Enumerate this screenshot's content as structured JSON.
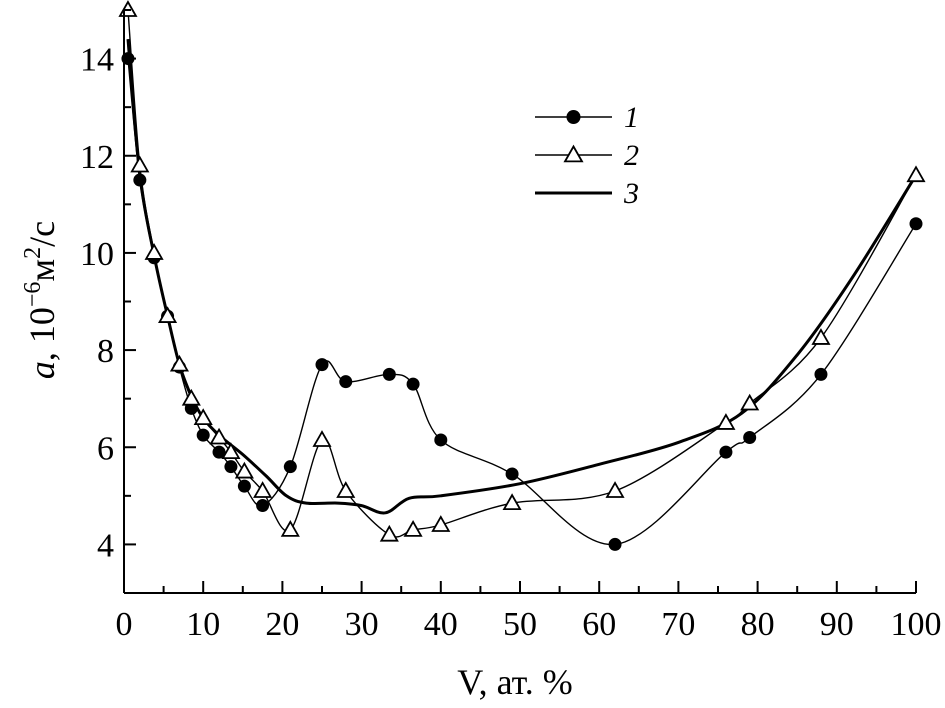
{
  "chart_data": {
    "type": "line",
    "xlabel": "V, ат. %",
    "ylabel_parts": {
      "var": "a",
      "mid": ", 10",
      "exp": "−6",
      "unit": "м",
      "unit_exp": "2",
      "tail": "/с"
    },
    "xlim": [
      0,
      100
    ],
    "ylim": [
      3,
      15
    ],
    "x_ticks": [
      0,
      10,
      20,
      30,
      40,
      50,
      60,
      70,
      80,
      90,
      100
    ],
    "x_tick_labels": [
      "0",
      "10",
      "20",
      "30",
      "40",
      "50",
      "60",
      "70",
      "80",
      "90",
      "100"
    ],
    "y_ticks": [
      4,
      6,
      8,
      10,
      12,
      14
    ],
    "y_tick_labels": [
      "4",
      "6",
      "8",
      "10",
      "12",
      "14"
    ],
    "legend_position": "top-right",
    "series": [
      {
        "name": "1",
        "marker": "filled-circle",
        "points": [
          [
            0.5,
            14.0
          ],
          [
            2,
            11.5
          ],
          [
            3.8,
            9.9
          ],
          [
            5.5,
            8.7
          ],
          [
            7,
            7.65
          ],
          [
            8.5,
            6.8
          ],
          [
            10,
            6.25
          ],
          [
            12,
            5.9
          ],
          [
            13.5,
            5.6
          ],
          [
            15.2,
            5.2
          ],
          [
            17.5,
            4.8
          ],
          [
            21,
            5.6
          ],
          [
            25,
            7.7
          ],
          [
            28,
            7.35
          ],
          [
            33.5,
            7.5
          ],
          [
            36.5,
            7.3
          ],
          [
            40,
            6.15
          ],
          [
            49,
            5.45
          ],
          [
            62,
            4.0
          ],
          [
            76,
            5.9
          ],
          [
            79,
            6.2
          ],
          [
            88,
            7.5
          ],
          [
            100,
            10.6
          ]
        ]
      },
      {
        "name": "2",
        "marker": "open-triangle",
        "points": [
          [
            0.5,
            15.0
          ],
          [
            2,
            11.8
          ],
          [
            3.8,
            10.0
          ],
          [
            5.5,
            8.7
          ],
          [
            7,
            7.7
          ],
          [
            8.5,
            7.0
          ],
          [
            10,
            6.6
          ],
          [
            12,
            6.2
          ],
          [
            13.5,
            5.9
          ],
          [
            15.2,
            5.5
          ],
          [
            17.5,
            5.1
          ],
          [
            21,
            4.3
          ],
          [
            25,
            6.15
          ],
          [
            28,
            5.1
          ],
          [
            33.5,
            4.2
          ],
          [
            36.5,
            4.3
          ],
          [
            40,
            4.4
          ],
          [
            49,
            4.85
          ],
          [
            62,
            5.1
          ],
          [
            76,
            6.5
          ],
          [
            79,
            6.9
          ],
          [
            88,
            8.25
          ],
          [
            100,
            11.6
          ]
        ]
      },
      {
        "name": "3",
        "marker": "none",
        "points": [
          [
            0.5,
            14.4
          ],
          [
            2,
            11.6
          ],
          [
            3.8,
            9.95
          ],
          [
            5.5,
            8.7
          ],
          [
            7,
            7.7
          ],
          [
            8.5,
            7.05
          ],
          [
            10,
            6.6
          ],
          [
            12,
            6.25
          ],
          [
            15,
            5.85
          ],
          [
            18,
            5.4
          ],
          [
            20.5,
            5.0
          ],
          [
            23,
            4.85
          ],
          [
            27,
            4.85
          ],
          [
            30,
            4.8
          ],
          [
            33,
            4.65
          ],
          [
            36,
            4.95
          ],
          [
            40,
            5.0
          ],
          [
            50,
            5.25
          ],
          [
            60,
            5.65
          ],
          [
            70,
            6.1
          ],
          [
            78,
            6.7
          ],
          [
            85,
            7.9
          ],
          [
            92,
            9.5
          ],
          [
            100,
            11.6
          ]
        ]
      }
    ]
  }
}
